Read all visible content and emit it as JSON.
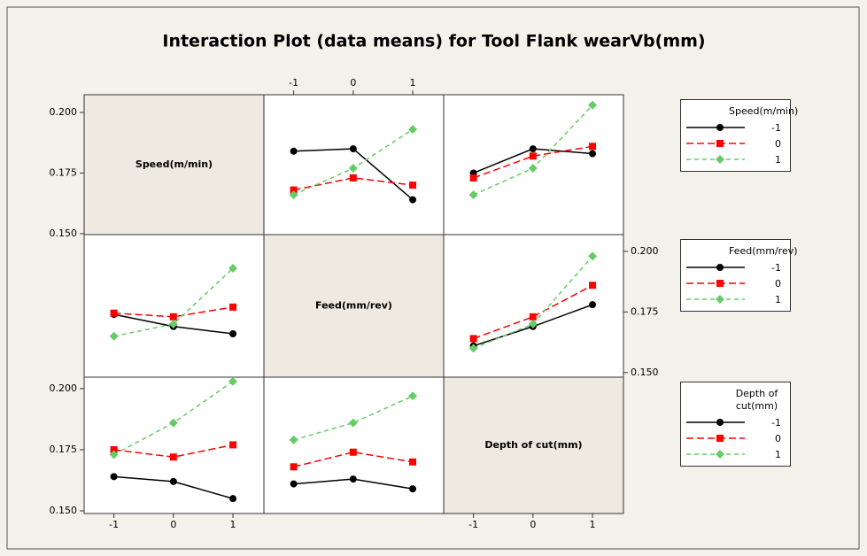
{
  "chart_data": {
    "type": "interaction",
    "title": "Interaction Plot (data means) for Tool Flank wearVb(mm)",
    "factors": [
      "Speed(m/min)",
      "Feed(mm/rev)",
      "Depth of cut(mm)"
    ],
    "series_styles": [
      {
        "name": "-1",
        "color": "#000000",
        "marker": "circle",
        "dash": "solid"
      },
      {
        "name": "0",
        "color": "#ff0000",
        "marker": "square",
        "dash": "8,4"
      },
      {
        "name": "1",
        "color": "#66cc66",
        "marker": "diamond",
        "dash": "5,4"
      }
    ],
    "x": [
      -1,
      0,
      1
    ],
    "xlim": [
      -1.5,
      1.52
    ],
    "xticks": [
      -1,
      0,
      1
    ],
    "xaxis_sides": [
      "bottom",
      "top",
      "bottom"
    ],
    "yaxis_sides": [
      "left",
      "right",
      "left"
    ],
    "rows": [
      {
        "ylim": [
          0.1496,
          0.2073
        ],
        "yticks": [
          {
            "value": 0.15,
            "label": "0.150"
          },
          0.175,
          {
            "value": 0.2,
            "label": "0.200"
          }
        ],
        "cells": [
          null,
          {
            "values": [
              [
                0.184,
                0.185,
                0.164
              ],
              [
                0.168,
                0.173,
                0.17
              ],
              [
                0.166,
                0.177,
                0.193
              ]
            ]
          },
          {
            "values": [
              [
                0.175,
                0.185,
                0.183
              ],
              [
                0.173,
                0.182,
                0.186
              ],
              [
                0.166,
                0.177,
                0.203
              ]
            ]
          }
        ]
      },
      {
        "ylim": [
          0.1481,
          0.2069
        ],
        "yticks": [
          {
            "value": 0.15,
            "label": "0.150"
          },
          0.175,
          {
            "value": 0.2,
            "label": "0.200"
          }
        ],
        "cells": [
          {
            "values": [
              [
                0.174,
                0.169,
                0.166
              ],
              [
                0.1745,
                0.173,
                0.177
              ],
              [
                0.165,
                0.17,
                0.193
              ]
            ]
          },
          null,
          {
            "values": [
              [
                0.161,
                0.169,
                0.178
              ],
              [
                0.164,
                0.173,
                0.186
              ],
              [
                0.16,
                0.17,
                0.198
              ]
            ]
          }
        ]
      },
      {
        "ylim": [
          0.1489,
          0.2047
        ],
        "yticks": [
          {
            "value": 0.15,
            "label": "0.150"
          },
          0.175,
          {
            "value": 0.2,
            "label": "0.200"
          }
        ],
        "cells": [
          {
            "values": [
              [
                0.164,
                0.162,
                0.155
              ],
              [
                0.175,
                0.172,
                0.177
              ],
              [
                0.173,
                0.186,
                0.203
              ]
            ]
          },
          {
            "values": [
              [
                0.161,
                0.163,
                0.159
              ],
              [
                0.168,
                0.174,
                0.17
              ],
              [
                0.179,
                0.186,
                0.197
              ]
            ]
          },
          null
        ]
      }
    ]
  }
}
